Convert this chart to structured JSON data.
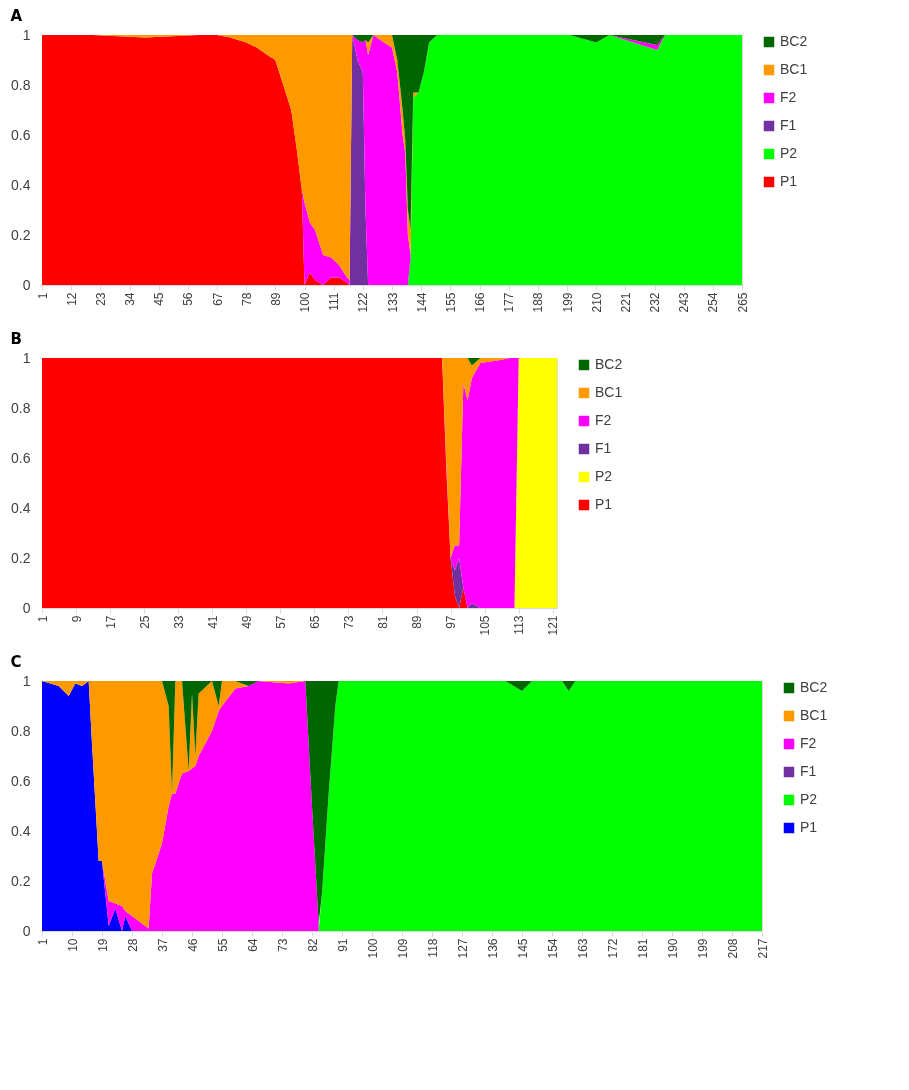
{
  "chart_data": [
    {
      "type": "area",
      "title": "A",
      "stacked": true,
      "legend": "right",
      "grid": false,
      "x": [
        1,
        20,
        40,
        60,
        67,
        72,
        78,
        82,
        86,
        89,
        92,
        95,
        97,
        99,
        100,
        102,
        104,
        107,
        110,
        113,
        116,
        117,
        118,
        120,
        122,
        123,
        124,
        126,
        130,
        133,
        135,
        137,
        138,
        139,
        140,
        141,
        143,
        145,
        147,
        150,
        200,
        210,
        215,
        233,
        236,
        265
      ],
      "series": [
        {
          "name": "P1",
          "color": "#ff0000",
          "values": [
            1,
            1,
            0.99,
            1,
            1,
            0.99,
            0.97,
            0.95,
            0.92,
            0.9,
            0.8,
            0.7,
            0.55,
            0.38,
            0,
            0.05,
            0.02,
            0,
            0.03,
            0.03,
            0.01,
            0,
            null,
            null,
            null,
            null,
            null,
            null,
            null,
            null,
            null,
            null,
            null,
            null,
            null,
            null,
            null,
            null,
            null,
            null,
            null,
            null,
            null,
            null,
            null,
            null
          ]
        },
        {
          "name": "P2",
          "color": "#00ff00",
          "values": [
            null,
            null,
            null,
            null,
            null,
            null,
            null,
            null,
            null,
            null,
            null,
            null,
            null,
            null,
            null,
            null,
            null,
            null,
            null,
            null,
            null,
            null,
            null,
            null,
            null,
            null,
            null,
            null,
            null,
            null,
            null,
            null,
            null,
            0,
            0.1,
            0.75,
            0.77,
            0.85,
            0.97,
            1,
            1,
            0.97,
            1,
            0.94,
            1,
            1
          ]
        },
        {
          "name": "F1",
          "color": "#7030a0",
          "values": [
            null,
            null,
            null,
            null,
            null,
            null,
            null,
            null,
            null,
            null,
            null,
            null,
            null,
            null,
            null,
            null,
            null,
            null,
            null,
            null,
            null,
            0,
            1,
            0.9,
            0.85,
            0.3,
            0,
            null,
            null,
            null,
            null,
            null,
            null,
            0,
            0.02,
            0,
            null,
            null,
            null,
            null,
            null,
            null,
            null,
            null,
            null,
            null
          ]
        },
        {
          "name": "F2",
          "color": "#ff00ff",
          "values": [
            null,
            null,
            null,
            null,
            null,
            null,
            null,
            null,
            null,
            null,
            null,
            null,
            null,
            0,
            0.33,
            0.2,
            0.2,
            0.12,
            0.08,
            0.05,
            0.02,
            0.02,
            0,
            0.08,
            0.12,
            0.68,
            0.92,
            1,
            0.97,
            0.95,
            0.85,
            0.6,
            0.53,
            0.2,
            0,
            null,
            null,
            null,
            null,
            null,
            null,
            null,
            0,
            0.02,
            0,
            null
          ]
        },
        {
          "name": "BC1",
          "color": "#ff9900",
          "values": [
            null,
            0,
            0.01,
            0,
            0,
            0.01,
            0.03,
            0.05,
            0.08,
            0.1,
            0.2,
            0.3,
            0.45,
            0.62,
            0.67,
            0.75,
            0.78,
            0.88,
            0.89,
            0.92,
            0.97,
            0.98,
            0,
            null,
            null,
            0,
            0.05,
            0,
            0.03,
            0.05,
            0.05,
            0.1,
            0.05,
            0.1,
            0.1,
            0.02,
            0,
            null,
            null,
            null,
            null,
            null,
            null,
            null,
            null,
            null
          ]
        },
        {
          "name": "BC2",
          "color": "#006600",
          "values": [
            null,
            null,
            null,
            null,
            null,
            null,
            null,
            null,
            null,
            null,
            null,
            null,
            null,
            null,
            null,
            null,
            null,
            null,
            null,
            null,
            null,
            null,
            0,
            0.02,
            0.03,
            0.02,
            0.03,
            0,
            null,
            0,
            0.1,
            0.3,
            0.42,
            0.7,
            0.78,
            0.23,
            0.23,
            0.15,
            0.03,
            0,
            0,
            0.03,
            0,
            0.04,
            0,
            null
          ]
        }
      ],
      "xlim": [
        1,
        265
      ],
      "xticks": [
        1,
        12,
        23,
        34,
        45,
        56,
        67,
        78,
        89,
        100,
        111,
        122,
        133,
        144,
        155,
        166,
        177,
        188,
        199,
        210,
        221,
        232,
        243,
        254,
        265
      ],
      "ylim": [
        0,
        1
      ],
      "yticks": [
        0,
        0.2,
        0.4,
        0.6,
        0.8,
        1
      ]
    },
    {
      "type": "area",
      "title": "B",
      "stacked": true,
      "legend": "right",
      "grid": false,
      "x": [
        1,
        94,
        95,
        96,
        97,
        98,
        99,
        100,
        101,
        102,
        104,
        108,
        111,
        112,
        113,
        122
      ],
      "series": [
        {
          "name": "P1",
          "color": "#ff0000",
          "values": [
            1,
            1,
            1,
            0.55,
            0.2,
            0.05,
            0,
            0.08,
            0,
            null,
            null,
            null,
            null,
            null,
            null,
            null
          ]
        },
        {
          "name": "P2",
          "color": "#ffff00",
          "values": [
            null,
            null,
            null,
            null,
            null,
            null,
            null,
            null,
            null,
            null,
            null,
            null,
            null,
            0,
            1,
            1
          ]
        },
        {
          "name": "F1",
          "color": "#7030a0",
          "values": [
            null,
            null,
            null,
            null,
            0,
            0.1,
            0.2,
            0,
            0,
            0.02,
            0,
            null,
            null,
            null,
            null,
            null
          ]
        },
        {
          "name": "F2",
          "color": "#ff00ff",
          "values": [
            null,
            null,
            0,
            0.03,
            0,
            0.1,
            0.05,
            0.82,
            0.83,
            0.9,
            0.98,
            0.99,
            1,
            1,
            0,
            null
          ]
        },
        {
          "name": "BC1",
          "color": "#ff9900",
          "values": [
            null,
            null,
            0,
            0.42,
            0.8,
            0.75,
            0.75,
            0.1,
            0.17,
            0.05,
            0.02,
            0.01,
            0,
            null,
            null,
            null
          ]
        },
        {
          "name": "BC2",
          "color": "#006600",
          "values": [
            null,
            null,
            null,
            null,
            null,
            null,
            null,
            null,
            0,
            0.03,
            0,
            null,
            null,
            null,
            null,
            null
          ]
        }
      ],
      "xlim": [
        1,
        122
      ],
      "xticks": [
        1,
        9,
        17,
        25,
        33,
        41,
        49,
        57,
        65,
        73,
        81,
        89,
        97,
        105,
        113,
        121
      ],
      "ylim": [
        0,
        1
      ],
      "yticks": [
        0,
        0.2,
        0.4,
        0.6,
        0.8,
        1
      ]
    },
    {
      "type": "area",
      "title": "C",
      "stacked": true,
      "legend": "right",
      "grid": false,
      "x": [
        1,
        6,
        9,
        11,
        13,
        15,
        16,
        18,
        19,
        21,
        23,
        25,
        26,
        28,
        31,
        33,
        34,
        37,
        39,
        40,
        41,
        43,
        45,
        46,
        47,
        48,
        52,
        54,
        55,
        59,
        63,
        66,
        75,
        80,
        82,
        84,
        85,
        87,
        89,
        90,
        140,
        145,
        148,
        157,
        159,
        161,
        217
      ],
      "series": [
        {
          "name": "P1",
          "color": "#0000ff",
          "values": [
            1,
            0.98,
            0.94,
            0.99,
            0.98,
            1,
            0.75,
            0.28,
            0.28,
            0.02,
            0.09,
            0,
            0.06,
            0,
            null,
            null,
            null,
            null,
            null,
            null,
            null,
            null,
            null,
            null,
            null,
            null,
            null,
            null,
            null,
            null,
            null,
            null,
            null,
            null,
            null,
            null,
            null,
            null,
            null,
            null,
            null,
            null,
            null,
            null,
            null,
            null,
            null
          ]
        },
        {
          "name": "P2",
          "color": "#00ff00",
          "values": [
            null,
            null,
            null,
            null,
            null,
            null,
            null,
            null,
            null,
            null,
            null,
            null,
            null,
            null,
            null,
            null,
            null,
            null,
            null,
            null,
            null,
            null,
            null,
            null,
            null,
            null,
            null,
            null,
            null,
            null,
            null,
            null,
            null,
            null,
            null,
            0,
            0.15,
            0.55,
            0.9,
            1,
            1,
            0.96,
            1,
            1,
            0.96,
            1,
            1
          ]
        },
        {
          "name": "F1",
          "color": "#7030a0",
          "values": [
            null,
            null,
            null,
            null,
            null,
            null,
            null,
            null,
            null,
            null,
            null,
            null,
            null,
            null,
            null,
            null,
            null,
            null,
            null,
            null,
            null,
            null,
            null,
            null,
            null,
            null,
            null,
            null,
            null,
            null,
            null,
            null,
            null,
            null,
            null,
            null,
            null,
            null,
            null,
            null,
            null,
            null,
            null,
            null,
            null,
            null,
            null
          ]
        },
        {
          "name": "F2",
          "color": "#ff00ff",
          "values": [
            null,
            null,
            null,
            null,
            null,
            null,
            null,
            null,
            0,
            0.1,
            0.02,
            0.1,
            0.02,
            0.06,
            0.03,
            0.01,
            0.23,
            0.35,
            0.5,
            0.55,
            0.55,
            0.63,
            0.64,
            0.65,
            0.66,
            0.7,
            0.8,
            0.88,
            0.9,
            0.97,
            0.98,
            1,
            0.99,
            1,
            0.5,
            0.03,
            null,
            null,
            null,
            null,
            null,
            null,
            null,
            null,
            null,
            null,
            null
          ]
        },
        {
          "name": "BC1",
          "color": "#ff9900",
          "values": [
            0,
            0.02,
            0.06,
            0.01,
            0.02,
            0,
            0.25,
            0.72,
            0.72,
            0.88,
            0.89,
            0.9,
            0.92,
            0.94,
            0.97,
            0.99,
            0.77,
            0.65,
            0.4,
            0,
            0.45,
            0.37,
            0,
            0.3,
            0.04,
            0.25,
            0.2,
            0.02,
            0.1,
            0.03,
            0,
            0,
            0.01,
            0,
            null,
            null,
            null,
            null,
            null,
            null,
            null,
            null,
            null,
            null,
            null,
            null,
            null
          ]
        },
        {
          "name": "BC2",
          "color": "#006600",
          "values": [
            null,
            null,
            null,
            null,
            null,
            null,
            null,
            null,
            null,
            null,
            null,
            null,
            null,
            null,
            null,
            null,
            null,
            0,
            0.1,
            0.45,
            0,
            0,
            0.36,
            0.05,
            0.3,
            0.05,
            0,
            0.1,
            0,
            0,
            0.02,
            0,
            null,
            0,
            0.5,
            0.97,
            0.85,
            0.45,
            0.1,
            0,
            0,
            0.04,
            0,
            0,
            0.04,
            0,
            null
          ]
        }
      ],
      "xlim": [
        1,
        217
      ],
      "xticks": [
        1,
        10,
        19,
        28,
        37,
        46,
        55,
        64,
        73,
        82,
        91,
        100,
        109,
        118,
        127,
        136,
        145,
        154,
        163,
        172,
        181,
        190,
        199,
        208,
        217
      ],
      "ylim": [
        0,
        1
      ],
      "yticks": [
        0,
        0.2,
        0.4,
        0.6,
        0.8,
        1
      ]
    }
  ]
}
